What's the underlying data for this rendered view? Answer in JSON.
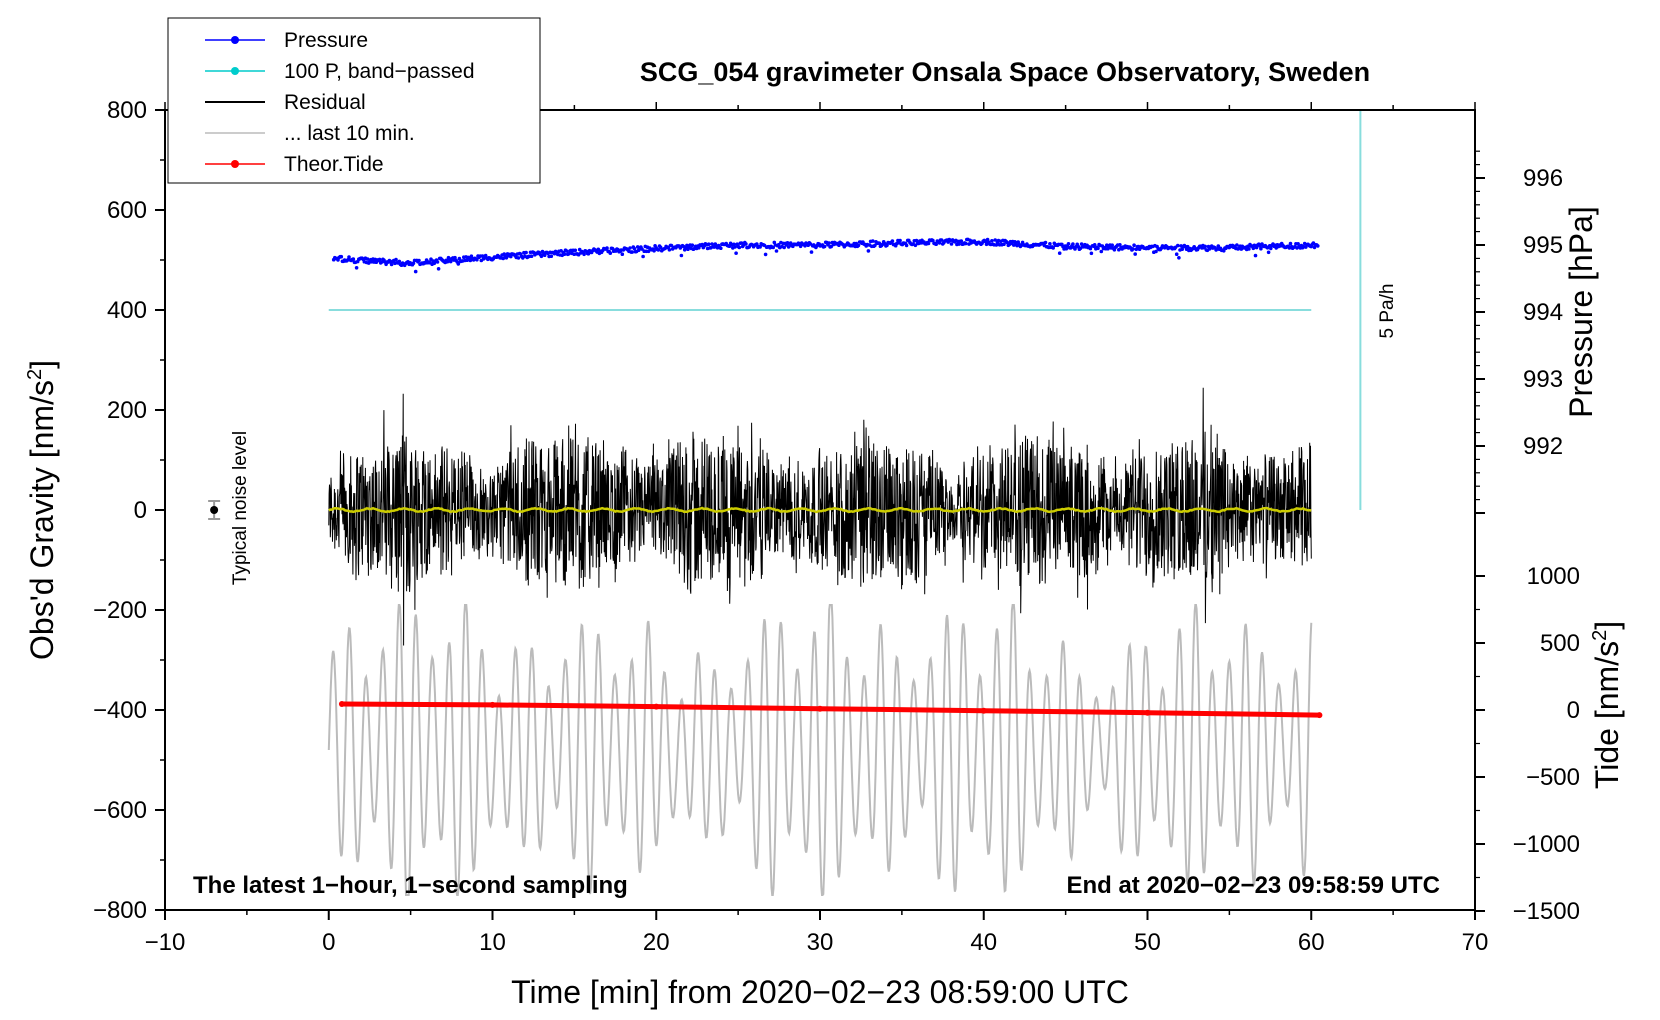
{
  "chart_data": {
    "type": "line",
    "title": "SCG_054 gravimeter Onsala Space Observatory, Sweden",
    "xlabel": "Time [min] from 2020−02−23 08:59:00 UTC",
    "ylabel_left_main": "Obs'd Gravity [nm/s",
    "ylabel_left_sup": "2",
    "ylabel_left_end": "]",
    "ylabel_right_top": "Pressure [hPa]",
    "ylabel_right_bottom_main": "Tide [nm/s",
    "ylabel_right_bottom_sup": "2",
    "ylabel_right_bottom_end": "]",
    "xlim": [
      -10,
      70
    ],
    "ylim_left": [
      -800,
      800
    ],
    "x_ticks": [
      "−10",
      "0",
      "10",
      "20",
      "30",
      "40",
      "50",
      "60",
      "70"
    ],
    "x_tick_values": [
      -10,
      0,
      10,
      20,
      30,
      40,
      50,
      60,
      70
    ],
    "y_left_ticks": [
      "800",
      "600",
      "400",
      "200",
      "0",
      "−200",
      "−400",
      "−600",
      "−800"
    ],
    "y_left_tick_values": [
      800,
      600,
      400,
      200,
      0,
      -200,
      -400,
      -600,
      -800
    ],
    "pressure_ticks": [
      "996",
      "995",
      "994",
      "993",
      "992"
    ],
    "pressure_tick_values": [
      996,
      995,
      994,
      993,
      992
    ],
    "tide_ticks": [
      "1000",
      "500",
      "0",
      "−500",
      "−1000",
      "−1500"
    ],
    "tide_tick_values": [
      1000,
      500,
      0,
      -500,
      -1000,
      -1500
    ],
    "legend": [
      {
        "label": "Pressure",
        "color": "#0000ff",
        "marker": true
      },
      {
        "label": "100 P, band−passed",
        "color": "#00cccc",
        "marker": true
      },
      {
        "label": "Residual",
        "color": "#000000",
        "marker": false
      },
      {
        "label": "... last 10 min.",
        "color": "#bbbbbb",
        "marker": false
      },
      {
        "label": "Theor.Tide",
        "color": "#ff0000",
        "marker": true
      }
    ],
    "legend_position": "top-left",
    "annotations": {
      "noise": "Typical noise level",
      "rate": "5 Pa/h",
      "footer_left": "The latest 1−hour, 1−second sampling",
      "footer_right": "End at 2020−02−23 09:58:59 UTC"
    },
    "series": [
      {
        "name": "Pressure",
        "axis": "pressure",
        "x": [
          0,
          5,
          10,
          15,
          20,
          25,
          30,
          35,
          40,
          45,
          50,
          55,
          60
        ],
        "values": [
          994.8,
          994.73,
          994.82,
          994.89,
          994.95,
          995.0,
          995.0,
          995.03,
          995.05,
          994.98,
          994.96,
          994.96,
          995.0
        ]
      },
      {
        "name": "100 P, band-passed",
        "axis": "gravity",
        "x": [
          0,
          60
        ],
        "values": [
          400,
          400
        ]
      },
      {
        "name": "Residual",
        "axis": "gravity",
        "x_range": [
          0,
          60
        ],
        "amplitude_range": [
          -330,
          310
        ]
      },
      {
        "name": "... last 10 min.",
        "axis": "gravity",
        "x_range": [
          0,
          60
        ],
        "values_range": [
          -770,
          -190
        ]
      },
      {
        "name": "Theor.Tide",
        "axis": "tide",
        "x": [
          0.8,
          10,
          20,
          30,
          40,
          50,
          60.5
        ],
        "values": [
          45,
          38,
          25,
          10,
          -5,
          -20,
          -38
        ]
      },
      {
        "name": "filtered residual",
        "axis": "gravity",
        "color": "#cccc00",
        "x_range": [
          0,
          60
        ],
        "values": [
          0
        ]
      }
    ],
    "rate_bar": {
      "x": 63,
      "y_from": 0,
      "y_to": 800,
      "color": "#88dddd"
    },
    "noise_marker": {
      "x": -7,
      "y": 0,
      "err": 18
    },
    "colors": {
      "pressure": "#0000ff",
      "bandpass": "#88dddd",
      "residual": "#000000",
      "last10": "#bbbbbb",
      "tide": "#ff0000",
      "filtered": "#cccc00"
    }
  }
}
